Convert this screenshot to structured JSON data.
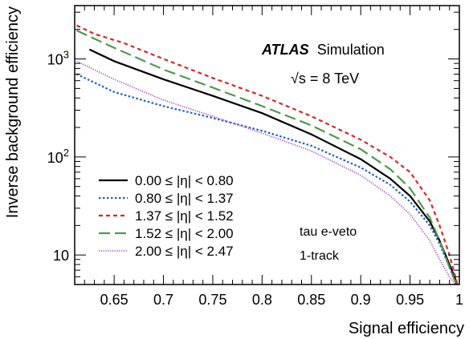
{
  "chart_data": {
    "type": "line",
    "xlabel": "Signal efficiency",
    "ylabel": "Inverse background efficiency",
    "xlim": [
      0.61,
      1.0
    ],
    "ylim": [
      5,
      3500
    ],
    "yscale": "log",
    "x_ticks": [
      {
        "value": 0.65,
        "label": "0.65"
      },
      {
        "value": 0.7,
        "label": "0.7"
      },
      {
        "value": 0.75,
        "label": "0.75"
      },
      {
        "value": 0.8,
        "label": "0.8"
      },
      {
        "value": 0.85,
        "label": "0.85"
      },
      {
        "value": 0.9,
        "label": "0.9"
      },
      {
        "value": 0.95,
        "label": "0.95"
      },
      {
        "value": 1.0,
        "label": "1"
      }
    ],
    "y_ticks": [
      {
        "value": 10,
        "label": "10"
      },
      {
        "value": 100,
        "label": "10",
        "exp": "2"
      },
      {
        "value": 1000,
        "label": "10",
        "exp": "3"
      }
    ],
    "grid": false,
    "legend_position": "bottom-left",
    "annotations": {
      "experiment": "ATLAS",
      "status": "Simulation",
      "energy": "√s = 8 TeV",
      "selection": "tau e-veto",
      "prongs": "1-track"
    },
    "series": [
      {
        "name": "0.00 ≤ |η| < 0.80",
        "color": "#000000",
        "dash": "solid",
        "x": [
          0.625,
          0.65,
          0.7,
          0.75,
          0.8,
          0.85,
          0.9,
          0.93,
          0.95,
          0.97,
          0.98,
          0.99,
          0.995,
          0.998
        ],
        "y": [
          1250,
          950,
          620,
          420,
          280,
          170,
          95,
          60,
          40,
          22,
          14,
          8,
          6,
          5
        ]
      },
      {
        "name": "0.80 ≤ |η| < 1.37",
        "color": "#1f5fc8",
        "dash": "dotted",
        "x": [
          0.612,
          0.65,
          0.7,
          0.75,
          0.8,
          0.85,
          0.9,
          0.93,
          0.95,
          0.97,
          0.98,
          0.99,
          0.997
        ],
        "y": [
          700,
          460,
          330,
          250,
          185,
          130,
          78,
          52,
          35,
          20,
          13,
          7.5,
          5
        ]
      },
      {
        "name": "1.37 ≤ |η| < 1.52",
        "color": "#d42a2a",
        "dash": "dashed",
        "x": [
          0.612,
          0.63,
          0.66,
          0.7,
          0.75,
          0.8,
          0.85,
          0.9,
          0.93,
          0.95,
          0.97,
          0.98,
          0.99,
          0.998
        ],
        "y": [
          2200,
          1800,
          1450,
          1000,
          640,
          420,
          260,
          150,
          100,
          70,
          36,
          20,
          10,
          5
        ]
      },
      {
        "name": "1.52 ≤ |η| < 2.00",
        "color": "#4e9a4e",
        "dash": "longdash",
        "x": [
          0.612,
          0.65,
          0.7,
          0.75,
          0.8,
          0.85,
          0.9,
          0.93,
          0.95,
          0.97,
          0.98,
          0.99,
          0.997
        ],
        "y": [
          1950,
          1300,
          780,
          510,
          330,
          210,
          120,
          75,
          48,
          24,
          14,
          7.5,
          5
        ]
      },
      {
        "name": "2.00 ≤ |η| < 2.47",
        "color": "#a640c8",
        "dash": "finedot",
        "x": [
          0.612,
          0.65,
          0.7,
          0.75,
          0.8,
          0.85,
          0.9,
          0.93,
          0.95,
          0.97,
          0.98,
          0.99,
          0.996
        ],
        "y": [
          950,
          620,
          380,
          260,
          175,
          115,
          65,
          40,
          26,
          14,
          9,
          6,
          5
        ]
      }
    ]
  }
}
